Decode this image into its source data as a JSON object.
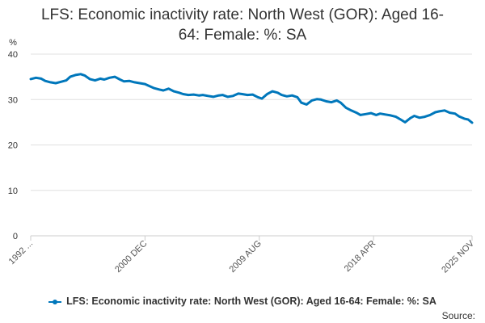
{
  "title_line1": "LFS: Economic inactivity rate: North West (GOR): Aged 16-",
  "title_line2": "64: Female: %: SA",
  "source_label": "Source:",
  "colors": {
    "series": "#0077bb",
    "grid": "#e0e0e0",
    "axis": "#cccccc",
    "text": "#333333"
  },
  "chart_data": {
    "type": "line",
    "title": "LFS: Economic inactivity rate: North West (GOR): Aged 16-64: Female: %: SA",
    "ylabel": "%",
    "xlabel": "",
    "ylim": [
      0,
      40
    ],
    "yticks": [
      "0",
      "10",
      "20",
      "30",
      "40"
    ],
    "xticks": [
      {
        "label": "1992 ...",
        "t": 0
      },
      {
        "label": "2000 DEC",
        "t": 8.7
      },
      {
        "label": "2009 AUG",
        "t": 17.4
      },
      {
        "label": "2018 APR",
        "t": 26.1
      },
      {
        "label": "2025 NOV",
        "t": 33.6
      }
    ],
    "x_range": [
      0,
      33.6
    ],
    "grid": true,
    "legend": "bottom",
    "series": [
      {
        "name": "LFS: Economic inactivity rate: North West (GOR): Aged 16-64: Female: %: SA",
        "points": [
          [
            0.0,
            34.5
          ],
          [
            0.4,
            34.8
          ],
          [
            0.8,
            34.6
          ],
          [
            1.1,
            34.1
          ],
          [
            1.5,
            33.8
          ],
          [
            1.9,
            33.6
          ],
          [
            2.3,
            33.9
          ],
          [
            2.7,
            34.2
          ],
          [
            3.0,
            35.0
          ],
          [
            3.4,
            35.4
          ],
          [
            3.8,
            35.6
          ],
          [
            4.1,
            35.3
          ],
          [
            4.5,
            34.5
          ],
          [
            4.9,
            34.2
          ],
          [
            5.3,
            34.6
          ],
          [
            5.6,
            34.4
          ],
          [
            6.0,
            34.8
          ],
          [
            6.4,
            35.0
          ],
          [
            6.8,
            34.4
          ],
          [
            7.1,
            34.0
          ],
          [
            7.5,
            34.1
          ],
          [
            7.9,
            33.8
          ],
          [
            8.3,
            33.6
          ],
          [
            8.7,
            33.4
          ],
          [
            9.0,
            33.0
          ],
          [
            9.4,
            32.5
          ],
          [
            9.8,
            32.2
          ],
          [
            10.1,
            32.0
          ],
          [
            10.5,
            32.4
          ],
          [
            10.9,
            31.8
          ],
          [
            11.3,
            31.5
          ],
          [
            11.6,
            31.2
          ],
          [
            12.0,
            31.0
          ],
          [
            12.4,
            31.1
          ],
          [
            12.8,
            30.9
          ],
          [
            13.1,
            31.0
          ],
          [
            13.5,
            30.8
          ],
          [
            13.9,
            30.6
          ],
          [
            14.3,
            30.9
          ],
          [
            14.6,
            31.0
          ],
          [
            15.0,
            30.6
          ],
          [
            15.4,
            30.8
          ],
          [
            15.8,
            31.3
          ],
          [
            16.1,
            31.2
          ],
          [
            16.5,
            31.0
          ],
          [
            16.9,
            31.1
          ],
          [
            17.3,
            30.5
          ],
          [
            17.6,
            30.2
          ],
          [
            18.0,
            31.2
          ],
          [
            18.4,
            31.8
          ],
          [
            18.8,
            31.5
          ],
          [
            19.1,
            31.0
          ],
          [
            19.5,
            30.7
          ],
          [
            19.9,
            30.9
          ],
          [
            20.3,
            30.5
          ],
          [
            20.6,
            29.3
          ],
          [
            21.0,
            28.9
          ],
          [
            21.4,
            29.8
          ],
          [
            21.8,
            30.1
          ],
          [
            22.1,
            30.0
          ],
          [
            22.5,
            29.6
          ],
          [
            22.9,
            29.4
          ],
          [
            23.3,
            29.8
          ],
          [
            23.6,
            29.3
          ],
          [
            24.0,
            28.2
          ],
          [
            24.4,
            27.6
          ],
          [
            24.8,
            27.1
          ],
          [
            25.1,
            26.6
          ],
          [
            25.5,
            26.8
          ],
          [
            25.9,
            27.0
          ],
          [
            26.3,
            26.6
          ],
          [
            26.6,
            26.9
          ],
          [
            27.0,
            26.7
          ],
          [
            27.4,
            26.5
          ],
          [
            27.8,
            26.2
          ],
          [
            28.1,
            25.7
          ],
          [
            28.5,
            25.0
          ],
          [
            28.9,
            25.9
          ],
          [
            29.2,
            26.4
          ],
          [
            29.6,
            26.0
          ],
          [
            30.0,
            26.2
          ],
          [
            30.4,
            26.6
          ],
          [
            30.8,
            27.2
          ],
          [
            31.1,
            27.4
          ],
          [
            31.5,
            27.6
          ],
          [
            31.9,
            27.1
          ],
          [
            32.3,
            26.9
          ],
          [
            32.6,
            26.3
          ],
          [
            33.0,
            25.8
          ],
          [
            33.3,
            25.6
          ],
          [
            33.6,
            24.9
          ]
        ]
      }
    ]
  }
}
